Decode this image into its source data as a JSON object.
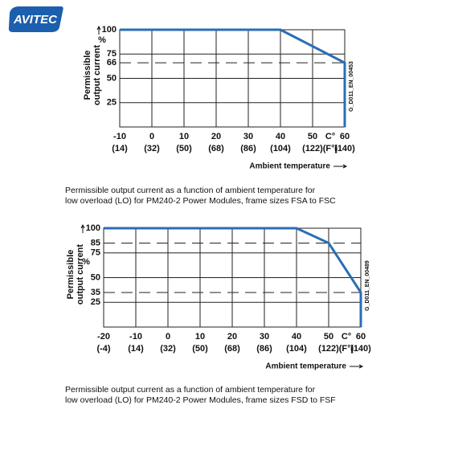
{
  "logo": "AVITEC",
  "chart_data": [
    {
      "type": "line",
      "y_label": [
        "Permissible",
        "output current"
      ],
      "y_unit": "%",
      "x_label": "Ambient temperature",
      "x_unit": "C°",
      "x_unit_f": "(F°)",
      "code": "G_D011_EN_00453",
      "x": [
        -10,
        40,
        60,
        60
      ],
      "values": [
        100,
        100,
        66,
        0
      ],
      "color": "#2a6db5",
      "xlim": [
        -10,
        60
      ],
      "xticks": [
        -10,
        0,
        10,
        20,
        30,
        40,
        50,
        60
      ],
      "xticks_f": [
        "(14)",
        "(32)",
        "(50)",
        "(68)",
        "(86)",
        "(104)",
        "(122)",
        "(140)"
      ],
      "ylim": [
        0,
        100
      ],
      "yticks": [
        25,
        50,
        75,
        100
      ],
      "dashed_yticks": [
        66
      ],
      "grid": true,
      "caption": [
        "Permissible output current as a function of ambient temperature for",
        "low overload (LO) for PM240-2 Power Modules, frame sizes FSA to FSC"
      ]
    },
    {
      "type": "line",
      "y_label": [
        "Permissible",
        "output current"
      ],
      "y_unit": "%",
      "x_label": "Ambient temperature",
      "x_unit": "C°",
      "x_unit_f": "(F°)",
      "code": "G_D011_EN_00489",
      "x": [
        -20,
        40,
        50,
        60,
        60
      ],
      "values": [
        100,
        100,
        85,
        35,
        0
      ],
      "color": "#2a6db5",
      "xlim": [
        -20,
        60
      ],
      "xticks": [
        -20,
        -10,
        0,
        10,
        20,
        30,
        40,
        50,
        60
      ],
      "xticks_f": [
        "(-4)",
        "(14)",
        "(32)",
        "(50)",
        "(68)",
        "(86)",
        "(104)",
        "(122)",
        "(140)"
      ],
      "ylim": [
        0,
        100
      ],
      "yticks": [
        25,
        50,
        75,
        100
      ],
      "dashed_yticks": [
        85,
        35
      ],
      "grid": true,
      "caption": [
        "Permissible output current as a function of ambient temperature for",
        "low overload (LO) for PM240-2 Power Modules, frame sizes FSD to FSF"
      ]
    }
  ]
}
